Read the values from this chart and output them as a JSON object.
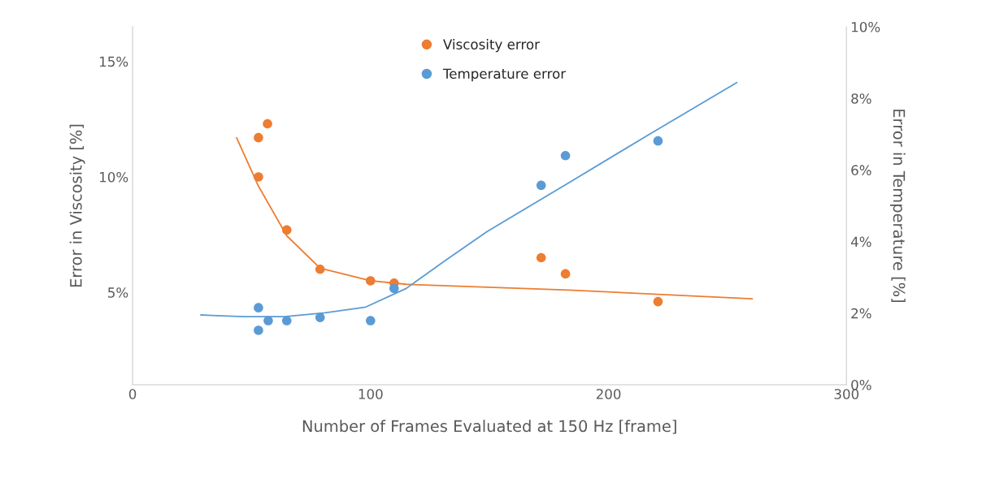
{
  "chart_data": {
    "type": "scatter",
    "xlabel": "Number of Frames Evaluated at 150 Hz [frame]",
    "ylabel": "Error in Viscosity [%]",
    "y2label": "Error in Temperature [%]",
    "xlim": [
      0,
      300
    ],
    "xticks": [
      0,
      100,
      200,
      300
    ],
    "ylim": [
      1,
      16.5
    ],
    "yticks": [
      {
        "value": 5,
        "label": "5%"
      },
      {
        "value": 10,
        "label": "10%"
      },
      {
        "value": 15,
        "label": "15%"
      }
    ],
    "y2lim": [
      0,
      10
    ],
    "y2ticks": [
      {
        "value": 0,
        "label": "0%"
      },
      {
        "value": 2,
        "label": "2%"
      },
      {
        "value": 4,
        "label": "4%"
      },
      {
        "value": 6,
        "label": "6%"
      },
      {
        "value": 8,
        "label": "8%"
      },
      {
        "value": 10,
        "label": "10%"
      }
    ],
    "marker": "circle",
    "grid": false,
    "legend": "top",
    "series": [
      {
        "name": "Viscosity error",
        "color": "#ed7d31",
        "x": [
          52.9,
          56.7,
          52.9,
          64.8,
          78.8,
          100,
          109.9,
          171.7,
          181.9,
          220.8
        ],
        "values": [
          11.7,
          12.3,
          10.0,
          7.7,
          6.0,
          5.5,
          5.4,
          6.5,
          5.8,
          4.6
        ]
      },
      {
        "name": "Temperature error",
        "axis": "y2",
        "color": "#5b9bd5",
        "x": [
          52.9,
          52.9,
          57,
          64.8,
          78.8,
          100,
          109.9,
          171.7,
          181.9,
          220.8
        ],
        "values": [
          2.15,
          1.52,
          1.79,
          1.79,
          1.88,
          1.79,
          2.69,
          5.57,
          6.4,
          6.81
        ]
      },
      {
        "type": "line",
        "color": "#ed7d31",
        "marker": "none",
        "x": [
          43.7,
          52.9,
          64.8,
          78.8,
          100,
          115,
          183.3,
          260.4
        ],
        "values": [
          11.7,
          9.6,
          7.45,
          6.05,
          5.5,
          5.35,
          5.1,
          4.72
        ]
      },
      {
        "type": "line",
        "axis": "y2",
        "color": "#5b9bd5",
        "marker": "none",
        "x": [
          28.7,
          46.8,
          63.8,
          80.9,
          98,
          115,
          132,
          149,
          183,
          217,
          253.9
        ],
        "values": [
          1.95,
          1.9,
          1.9,
          2.01,
          2.17,
          2.69,
          3.5,
          4.28,
          5.63,
          6.99,
          8.44
        ]
      }
    ]
  }
}
